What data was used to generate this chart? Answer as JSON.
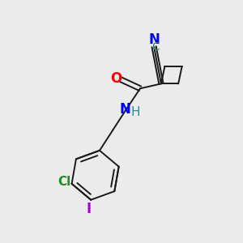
{
  "background_color": "#ebebeb",
  "bond_color": "#1a1a1a",
  "atom_colors": {
    "N": "#0000ff",
    "O": "#ff0000",
    "Cl": "#228b22",
    "I": "#aa00cc",
    "C_label": "#2e8b8b",
    "H": "#2e8b8b"
  },
  "font_size_main": 11,
  "font_size_small": 10
}
